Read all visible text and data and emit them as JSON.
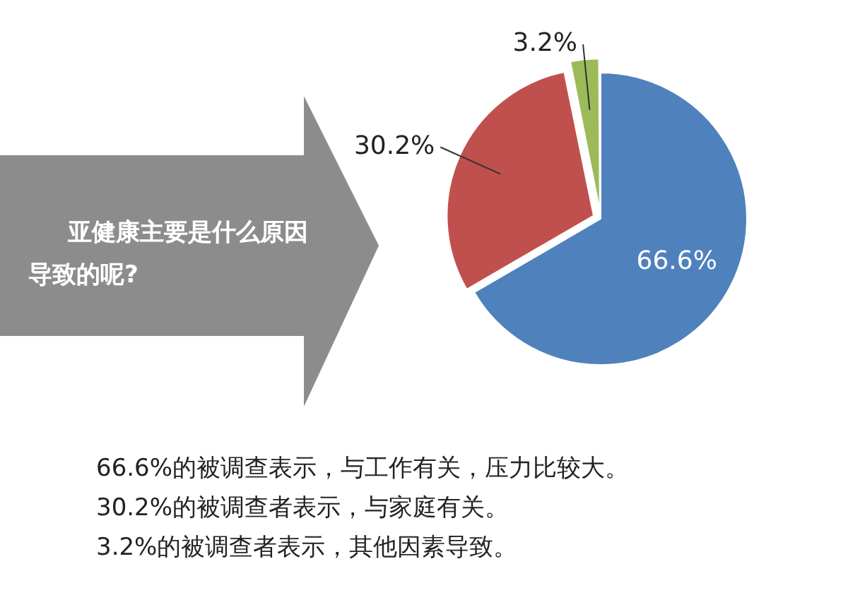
{
  "chart_data": {
    "type": "pie",
    "title": "亚健康主要是什么原因导致的呢?",
    "categories": [
      null,
      null,
      null
    ],
    "values": [
      66.6,
      30.2,
      3.2
    ],
    "colors": [
      "#4f81bd",
      "#c0504d",
      "#9bbb59"
    ],
    "value_labels": [
      "66.6%",
      "30.2%",
      "3.2%"
    ],
    "legend": false,
    "annotations": [
      "66.6%的被调查表示，与工作有关，压力比较大。",
      "30.2%的被调查者表示，与家庭有关。",
      "3.2%的被调查者表示，其他因素导致。"
    ]
  }
}
